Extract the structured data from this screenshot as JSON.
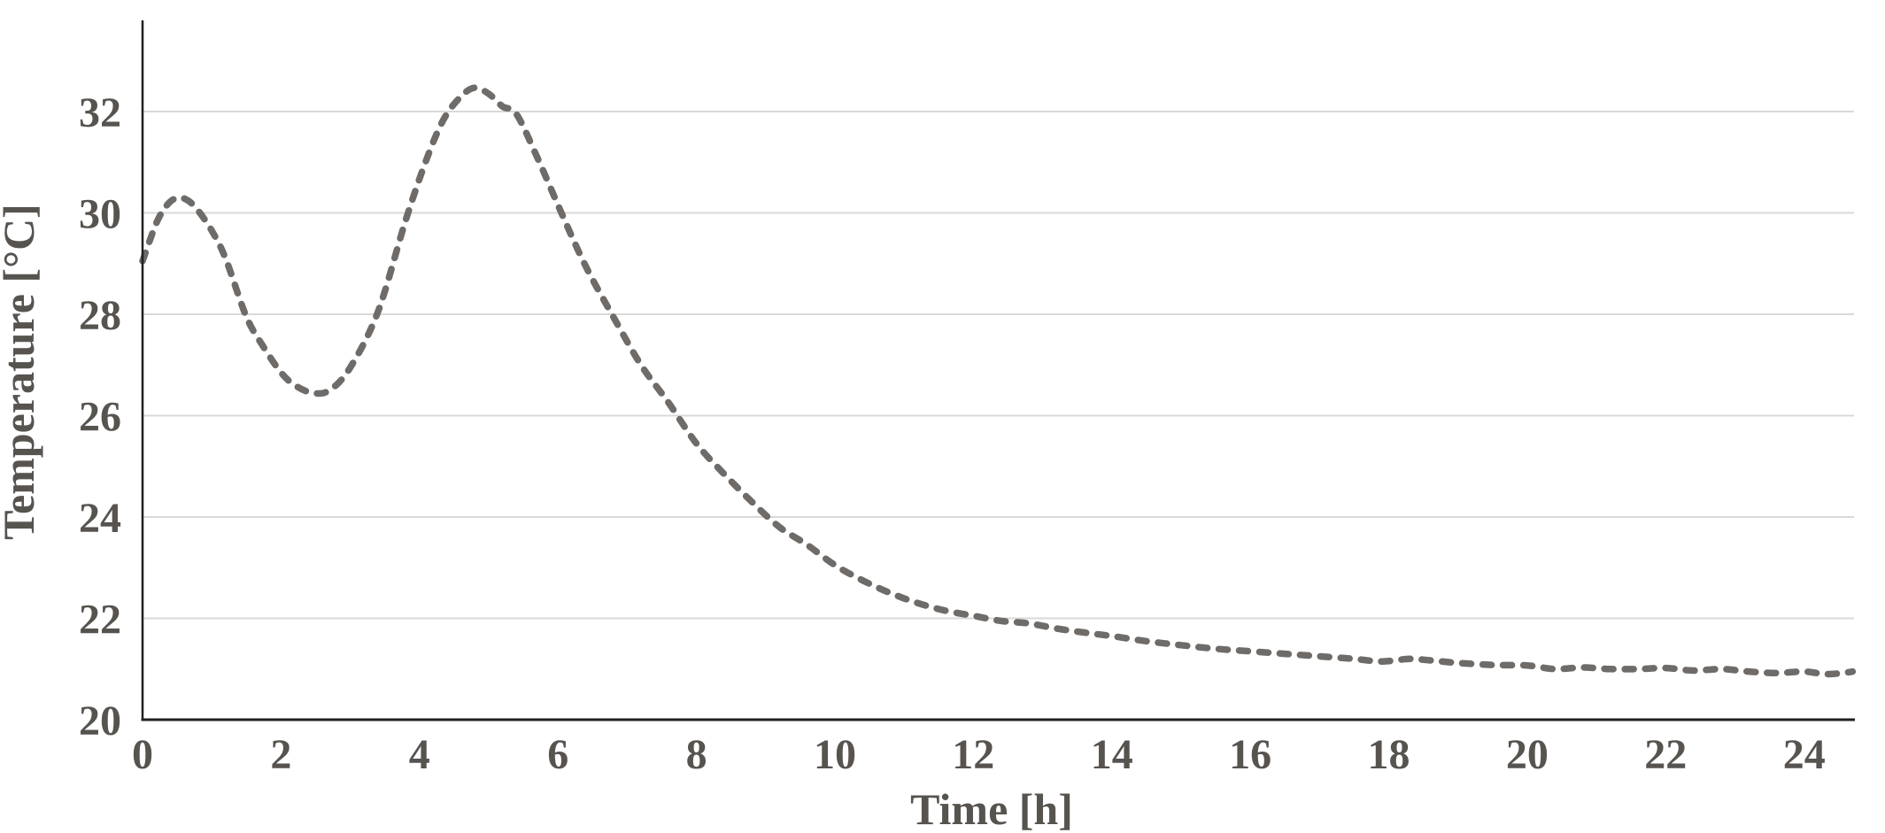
{
  "page": {
    "background": "#ffffff"
  },
  "chart_data": {
    "type": "line",
    "title": "",
    "xlabel": "Time [h]",
    "ylabel": "Temperature [°C]",
    "x_ticks": [
      0,
      2,
      4,
      6,
      8,
      10,
      12,
      14,
      16,
      18,
      20,
      22,
      24
    ],
    "y_ticks": [
      20,
      22,
      24,
      26,
      28,
      30,
      32
    ],
    "xlim": [
      0,
      24.72
    ],
    "ylim": [
      20,
      33.8
    ],
    "grid": "horizontal",
    "legend": "none",
    "colors": {
      "axis": "#1f1f1f",
      "gridline": "#d9d9d9",
      "tick_label": "#57534f",
      "series": "#6e6b68"
    },
    "series": [
      {
        "name": "Temperature",
        "color": "#6e6b68",
        "line_style": "dashed-round",
        "points": [
          [
            0,
            29.05
          ],
          [
            0.2,
            29.8
          ],
          [
            0.35,
            30.15
          ],
          [
            0.5,
            30.3
          ],
          [
            0.65,
            30.25
          ],
          [
            0.8,
            30.05
          ],
          [
            1.0,
            29.65
          ],
          [
            1.2,
            29.1
          ],
          [
            1.5,
            27.95
          ],
          [
            1.75,
            27.35
          ],
          [
            2.0,
            26.85
          ],
          [
            2.2,
            26.6
          ],
          [
            2.45,
            26.45
          ],
          [
            2.7,
            26.5
          ],
          [
            3.0,
            26.95
          ],
          [
            3.4,
            28.05
          ],
          [
            3.8,
            29.85
          ],
          [
            4.1,
            31.05
          ],
          [
            4.35,
            31.85
          ],
          [
            4.6,
            32.3
          ],
          [
            4.8,
            32.47
          ],
          [
            5.0,
            32.35
          ],
          [
            5.2,
            32.1
          ],
          [
            5.4,
            31.95
          ],
          [
            5.7,
            31.1
          ],
          [
            6.05,
            30.0
          ],
          [
            6.4,
            28.95
          ],
          [
            6.8,
            27.95
          ],
          [
            7.2,
            27.0
          ],
          [
            7.6,
            26.25
          ],
          [
            8.0,
            25.45
          ],
          [
            8.4,
            24.85
          ],
          [
            8.8,
            24.3
          ],
          [
            9.2,
            23.8
          ],
          [
            9.6,
            23.45
          ],
          [
            10.0,
            23.05
          ],
          [
            10.4,
            22.75
          ],
          [
            10.8,
            22.5
          ],
          [
            11.2,
            22.3
          ],
          [
            11.6,
            22.15
          ],
          [
            12.0,
            22.05
          ],
          [
            12.4,
            21.95
          ],
          [
            12.8,
            21.9
          ],
          [
            13.2,
            21.8
          ],
          [
            13.6,
            21.72
          ],
          [
            14.0,
            21.65
          ],
          [
            14.5,
            21.55
          ],
          [
            15.0,
            21.47
          ],
          [
            15.5,
            21.4
          ],
          [
            16.0,
            21.35
          ],
          [
            16.5,
            21.3
          ],
          [
            17.0,
            21.25
          ],
          [
            17.5,
            21.2
          ],
          [
            17.9,
            21.15
          ],
          [
            18.3,
            21.2
          ],
          [
            18.6,
            21.17
          ],
          [
            19.0,
            21.12
          ],
          [
            19.5,
            21.08
          ],
          [
            20.0,
            21.07
          ],
          [
            20.4,
            21.0
          ],
          [
            20.8,
            21.03
          ],
          [
            21.2,
            21.0
          ],
          [
            21.6,
            21.0
          ],
          [
            22.0,
            21.02
          ],
          [
            22.4,
            20.97
          ],
          [
            22.8,
            21.0
          ],
          [
            23.2,
            20.95
          ],
          [
            23.6,
            20.92
          ],
          [
            24.0,
            20.95
          ],
          [
            24.3,
            20.9
          ],
          [
            24.55,
            20.92
          ],
          [
            24.7,
            20.95
          ]
        ]
      }
    ]
  }
}
